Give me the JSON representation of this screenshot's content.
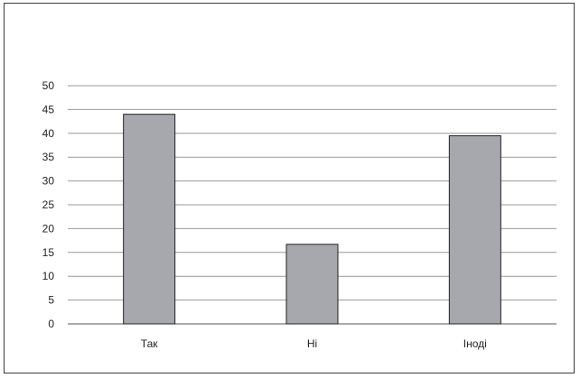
{
  "chart_data": {
    "type": "bar",
    "title": "",
    "xlabel": "",
    "ylabel": "",
    "categories": [
      "Так",
      "Ні",
      "Іноді"
    ],
    "values": [
      44,
      16.7,
      39.5
    ],
    "ylim": [
      0,
      50
    ],
    "yticks": [
      "0",
      "5",
      "10",
      "15",
      "20",
      "25",
      "30",
      "35",
      "40",
      "45",
      "50"
    ],
    "grid": true,
    "legend": "none",
    "colors": {
      "bar_fill": "#a7a8ad",
      "bar_stroke": "#222222",
      "grid": "#999999",
      "border": "#3a3a3a"
    }
  }
}
